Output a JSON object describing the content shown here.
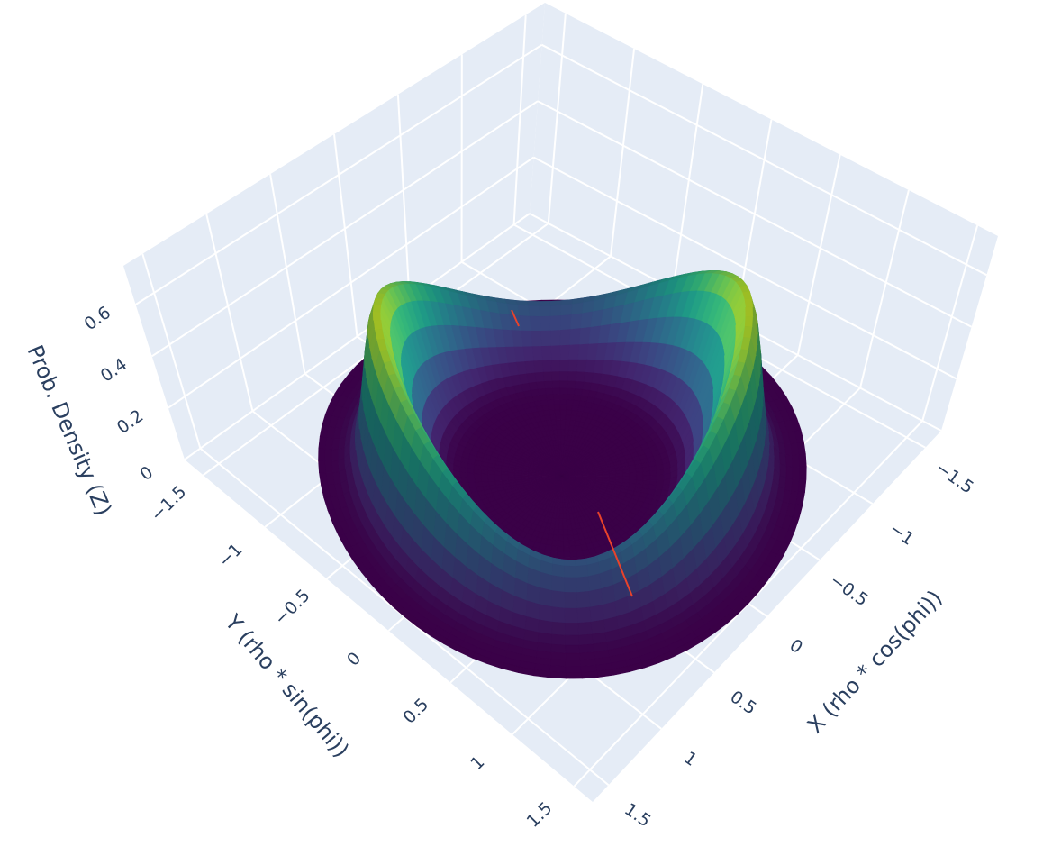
{
  "chart_data": {
    "type": "surface",
    "x_title": "X (rho * cos(phi))",
    "y_title": "Y (rho * sin(phi))",
    "z_title": "Prob. Density (Z)",
    "xlim": [
      -1.65,
      1.65
    ],
    "ylim": [
      -1.65,
      1.65
    ],
    "zlim": [
      0,
      0.75
    ],
    "xticks": [
      {
        "value": -1.5,
        "label": "−1.5"
      },
      {
        "value": -1,
        "label": "−1"
      },
      {
        "value": -0.5,
        "label": "−0.5"
      },
      0,
      0.5,
      1,
      1.5
    ],
    "yticks": [
      {
        "value": -1.5,
        "label": "−1.5"
      },
      {
        "value": -1,
        "label": "−1"
      },
      {
        "value": -0.5,
        "label": "−0.5"
      },
      0,
      0.5,
      1,
      1.5
    ],
    "zticks": [
      0,
      0.2,
      0.4,
      0.6
    ],
    "colorscale": "viridis",
    "grid": true
  }
}
